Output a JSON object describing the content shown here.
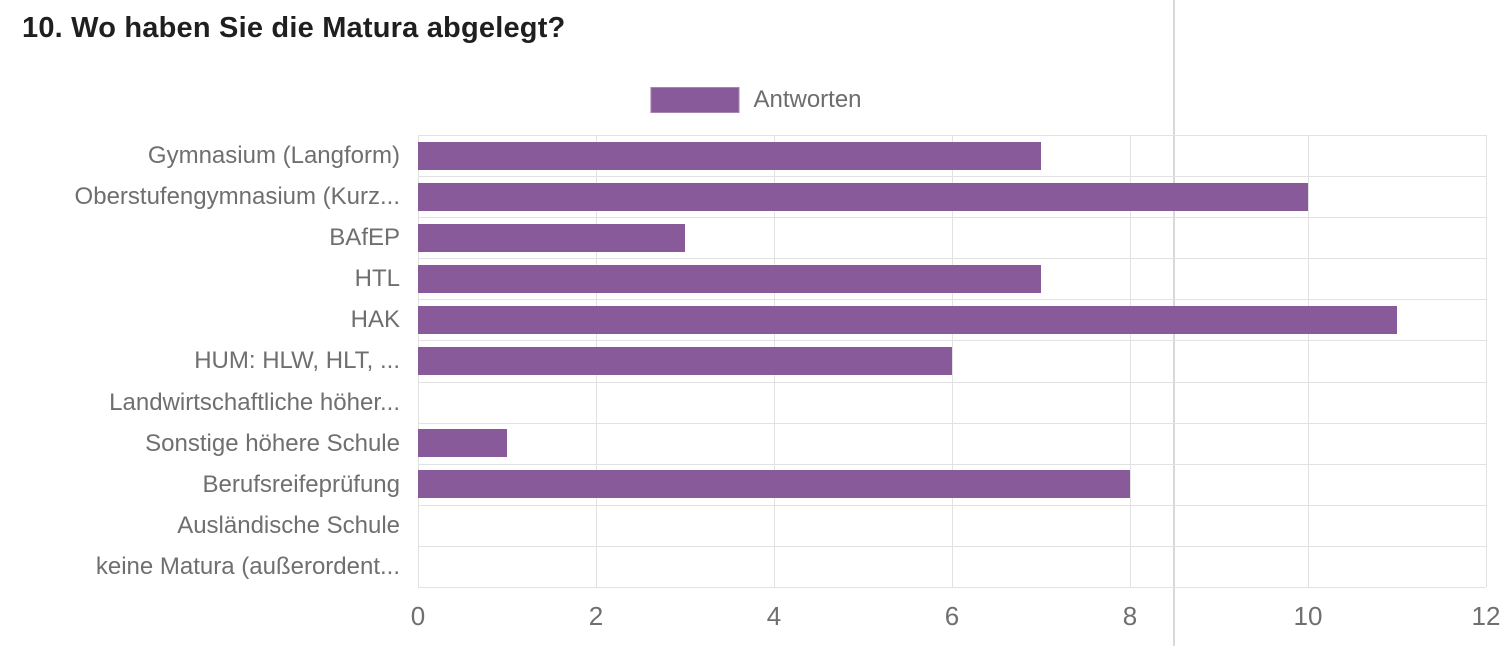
{
  "header": {
    "title": "10. Wo haben Sie die Matura abgelegt?"
  },
  "legend": {
    "label": "Antworten",
    "swatch_color": "#885a99",
    "swatch_border_color": "#a583b2"
  },
  "colors": {
    "bar": "#885a99",
    "gridline": "#e2e2e2",
    "divider": "#d9d9d9",
    "axis_text": "#6f6f6f",
    "title_text": "#1f1f1f"
  },
  "chart_data": {
    "type": "bar",
    "orientation": "horizontal",
    "title": "10. Wo haben Sie die Matura abgelegt?",
    "legend_entries": [
      "Antworten"
    ],
    "legend_position": "top-center",
    "categories": [
      "Gymnasium (Langform)",
      "Oberstufengymnasium (Kurz...",
      "BAfEP",
      "HTL",
      "HAK",
      "HUM: HLW, HLT, ...",
      "Landwirtschaftliche höher...",
      "Sonstige höhere Schule",
      "Berufsreifeprüfung",
      "Ausländische Schule",
      "keine Matura (außerordent..."
    ],
    "series": [
      {
        "name": "Antworten",
        "values": [
          7,
          10,
          3,
          7,
          11,
          6,
          0,
          1,
          8,
          0,
          0
        ]
      }
    ],
    "xlabel": "",
    "ylabel": "",
    "xlim": [
      0,
      12
    ],
    "xticks": [
      0,
      2,
      4,
      6,
      8,
      10,
      12
    ],
    "grid": true
  }
}
